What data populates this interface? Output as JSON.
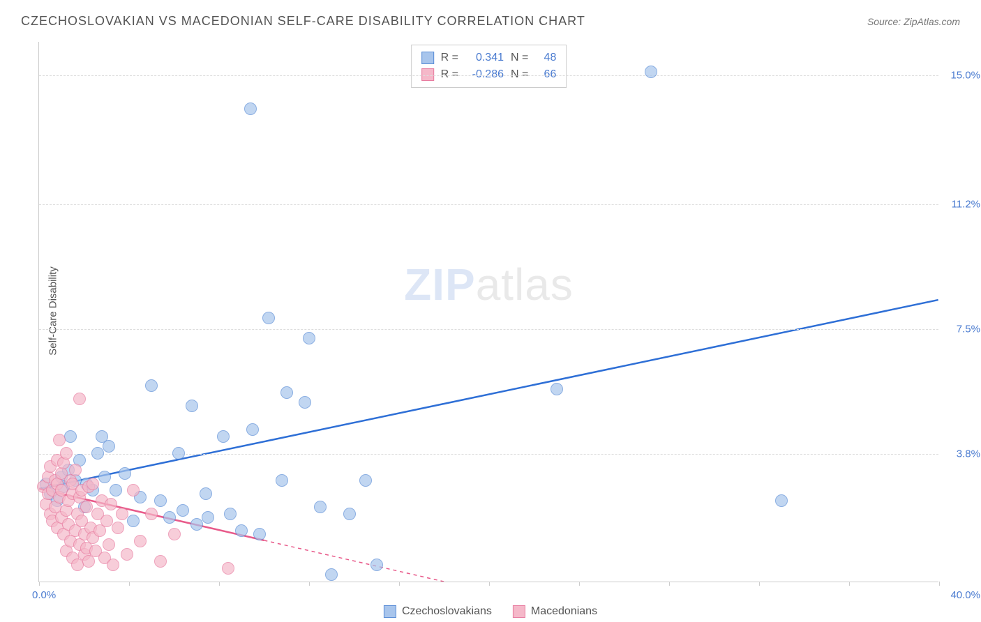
{
  "title": "CZECHOSLOVAKIAN VS MACEDONIAN SELF-CARE DISABILITY CORRELATION CHART",
  "source": "Source: ZipAtlas.com",
  "y_axis_label": "Self-Care Disability",
  "watermark_zip": "ZIP",
  "watermark_atlas": "atlas",
  "chart": {
    "type": "scatter",
    "background_color": "#ffffff",
    "grid_color": "#dddddd",
    "axis_color": "#cccccc",
    "tick_label_color": "#4a7bd0",
    "xlim": [
      0.0,
      40.0
    ],
    "ylim": [
      0.0,
      16.0
    ],
    "x_ticks_minor": [
      0,
      4,
      8,
      12,
      16,
      20,
      24,
      28,
      32,
      36,
      40
    ],
    "y_gridlines": [
      3.8,
      7.5,
      11.2,
      15.0
    ],
    "y_tick_labels": [
      "3.8%",
      "7.5%",
      "11.2%",
      "15.0%"
    ],
    "x_min_label": "0.0%",
    "x_max_label": "40.0%",
    "point_radius": 9,
    "point_border_width": 1.5,
    "point_fill_opacity": 0.35,
    "series": [
      {
        "name": "Czechoslovakians",
        "color_fill": "#a8c5ec",
        "color_stroke": "#5a8dd6",
        "trend_color": "#2e6fd6",
        "trend_width": 2.5,
        "trend_dash_after_x": 40,
        "R": "0.341",
        "N": "48",
        "trend": {
          "x1": 0.0,
          "y1": 2.75,
          "x2": 40.0,
          "y2": 8.35
        },
        "points": [
          [
            0.3,
            2.9
          ],
          [
            0.5,
            2.6
          ],
          [
            0.8,
            2.4
          ],
          [
            1.0,
            3.1
          ],
          [
            1.3,
            3.3
          ],
          [
            1.1,
            2.8
          ],
          [
            1.6,
            3.0
          ],
          [
            1.8,
            3.6
          ],
          [
            2.0,
            2.2
          ],
          [
            2.1,
            2.9
          ],
          [
            2.4,
            2.7
          ],
          [
            2.6,
            3.8
          ],
          [
            2.9,
            3.1
          ],
          [
            3.1,
            4.0
          ],
          [
            1.4,
            4.3
          ],
          [
            2.8,
            4.3
          ],
          [
            3.4,
            2.7
          ],
          [
            3.8,
            3.2
          ],
          [
            4.2,
            1.8
          ],
          [
            4.5,
            2.5
          ],
          [
            5.0,
            5.8
          ],
          [
            5.4,
            2.4
          ],
          [
            5.8,
            1.9
          ],
          [
            6.2,
            3.8
          ],
          [
            6.4,
            2.1
          ],
          [
            6.8,
            5.2
          ],
          [
            7.0,
            1.7
          ],
          [
            7.4,
            2.6
          ],
          [
            7.5,
            1.9
          ],
          [
            8.2,
            4.3
          ],
          [
            8.5,
            2.0
          ],
          [
            9.0,
            1.5
          ],
          [
            9.5,
            4.5
          ],
          [
            9.8,
            1.4
          ],
          [
            10.2,
            7.8
          ],
          [
            10.8,
            3.0
          ],
          [
            11.0,
            5.6
          ],
          [
            11.8,
            5.3
          ],
          [
            12.0,
            7.2
          ],
          [
            12.5,
            2.2
          ],
          [
            13.0,
            0.2
          ],
          [
            13.8,
            2.0
          ],
          [
            14.5,
            3.0
          ],
          [
            15.0,
            0.5
          ],
          [
            23.0,
            5.7
          ],
          [
            9.4,
            14.0
          ],
          [
            27.2,
            15.1
          ],
          [
            33.0,
            2.4
          ]
        ]
      },
      {
        "name": "Macedonians",
        "color_fill": "#f5b8c9",
        "color_stroke": "#e87ca0",
        "trend_color": "#e85a8a",
        "trend_width": 2.5,
        "trend_dash_after_x": 10,
        "R": "-0.286",
        "N": "66",
        "trend": {
          "x1": 0.0,
          "y1": 2.75,
          "x2": 18.0,
          "y2": 0.0
        },
        "points": [
          [
            0.2,
            2.8
          ],
          [
            0.3,
            2.3
          ],
          [
            0.4,
            3.1
          ],
          [
            0.4,
            2.6
          ],
          [
            0.5,
            2.0
          ],
          [
            0.5,
            3.4
          ],
          [
            0.6,
            2.7
          ],
          [
            0.6,
            1.8
          ],
          [
            0.7,
            3.0
          ],
          [
            0.7,
            2.2
          ],
          [
            0.8,
            3.6
          ],
          [
            0.8,
            1.6
          ],
          [
            0.8,
            2.9
          ],
          [
            0.9,
            2.5
          ],
          [
            0.9,
            4.2
          ],
          [
            1.0,
            3.2
          ],
          [
            1.0,
            1.9
          ],
          [
            1.0,
            2.7
          ],
          [
            1.1,
            1.4
          ],
          [
            1.1,
            3.5
          ],
          [
            1.2,
            2.1
          ],
          [
            1.2,
            3.8
          ],
          [
            1.2,
            0.9
          ],
          [
            1.3,
            2.4
          ],
          [
            1.3,
            1.7
          ],
          [
            1.4,
            3.0
          ],
          [
            1.4,
            1.2
          ],
          [
            1.5,
            2.6
          ],
          [
            1.5,
            0.7
          ],
          [
            1.5,
            2.9
          ],
          [
            1.6,
            1.5
          ],
          [
            1.6,
            3.3
          ],
          [
            1.7,
            2.0
          ],
          [
            1.7,
            0.5
          ],
          [
            1.8,
            2.5
          ],
          [
            1.8,
            1.1
          ],
          [
            1.8,
            5.4
          ],
          [
            1.9,
            1.8
          ],
          [
            1.9,
            2.7
          ],
          [
            2.0,
            0.8
          ],
          [
            2.0,
            1.4
          ],
          [
            2.1,
            2.2
          ],
          [
            2.1,
            1.0
          ],
          [
            2.2,
            2.8
          ],
          [
            2.2,
            0.6
          ],
          [
            2.3,
            1.6
          ],
          [
            2.4,
            2.9
          ],
          [
            2.4,
            1.3
          ],
          [
            2.5,
            0.9
          ],
          [
            2.6,
            2.0
          ],
          [
            2.7,
            1.5
          ],
          [
            2.8,
            2.4
          ],
          [
            2.9,
            0.7
          ],
          [
            3.0,
            1.8
          ],
          [
            3.1,
            1.1
          ],
          [
            3.2,
            2.3
          ],
          [
            3.3,
            0.5
          ],
          [
            3.5,
            1.6
          ],
          [
            3.7,
            2.0
          ],
          [
            3.9,
            0.8
          ],
          [
            4.2,
            2.7
          ],
          [
            4.5,
            1.2
          ],
          [
            5.0,
            2.0
          ],
          [
            5.4,
            0.6
          ],
          [
            6.0,
            1.4
          ],
          [
            8.4,
            0.4
          ]
        ]
      }
    ]
  },
  "stats_box": {
    "r_label": "R =",
    "n_label": "N ="
  },
  "legend_labels": [
    "Czechoslovakians",
    "Macedonians"
  ]
}
